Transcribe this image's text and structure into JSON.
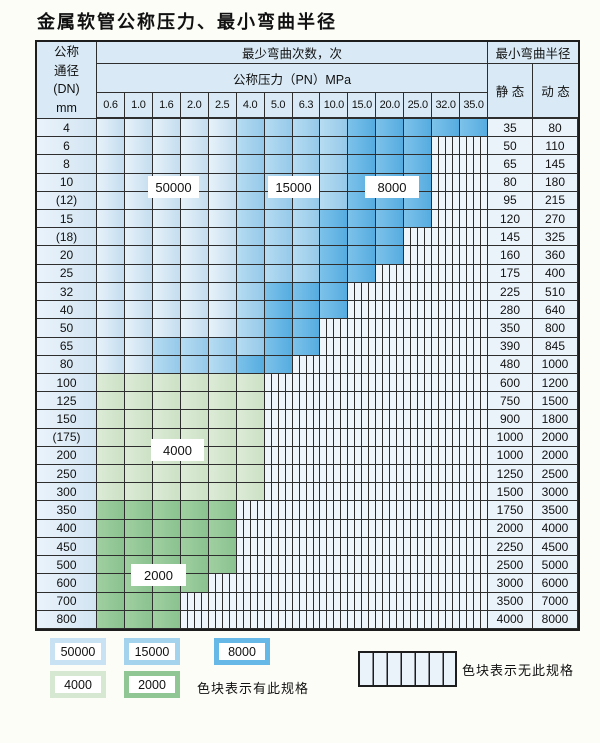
{
  "page": {
    "title": "金属软管公称压力、最小弯曲半径"
  },
  "table": {
    "header": {
      "dn_lines": [
        "公称",
        "通径",
        "(DN)",
        "mm"
      ],
      "bend_cycles": "最少弯曲次数，次",
      "pressure": "公称压力（PN）MPa",
      "radius": "最小弯曲半径",
      "static": "静 态",
      "dynamic": "动 态",
      "pressures": [
        "0.6",
        "1.0",
        "1.6",
        "2.0",
        "2.5",
        "4.0",
        "5.0",
        "6.3",
        "10.0",
        "15.0",
        "20.0",
        "25.0",
        "32.0",
        "35.0"
      ]
    },
    "rows": [
      {
        "dn": "4",
        "static": "35",
        "dynamic": "80",
        "cells": [
          "50000",
          "50000",
          "50000",
          "50000",
          "50000",
          "15000",
          "15000",
          "15000",
          "15000",
          "8000",
          "8000",
          "8000",
          "8000",
          "8000"
        ]
      },
      {
        "dn": "6",
        "static": "50",
        "dynamic": "110",
        "cells": [
          "50000",
          "50000",
          "50000",
          "50000",
          "50000",
          "15000",
          "15000",
          "15000",
          "15000",
          "8000",
          "8000",
          "8000",
          "none",
          "none"
        ]
      },
      {
        "dn": "8",
        "static": "65",
        "dynamic": "145",
        "cells": [
          "50000",
          "50000",
          "50000",
          "50000",
          "50000",
          "15000",
          "15000",
          "15000",
          "15000",
          "8000",
          "8000",
          "8000",
          "none",
          "none"
        ]
      },
      {
        "dn": "10",
        "static": "80",
        "dynamic": "180",
        "cells": [
          "50000",
          "50000",
          "50000",
          "50000",
          "50000",
          "15000",
          "15000",
          "15000",
          "15000",
          "8000",
          "8000",
          "8000",
          "none",
          "none"
        ]
      },
      {
        "dn": "(12)",
        "static": "95",
        "dynamic": "215",
        "cells": [
          "50000",
          "50000",
          "50000",
          "50000",
          "50000",
          "15000",
          "15000",
          "15000",
          "15000",
          "8000",
          "8000",
          "8000",
          "none",
          "none"
        ]
      },
      {
        "dn": "15",
        "static": "120",
        "dynamic": "270",
        "cells": [
          "50000",
          "50000",
          "50000",
          "50000",
          "50000",
          "15000",
          "15000",
          "15000",
          "8000",
          "8000",
          "8000",
          "8000",
          "none",
          "none"
        ]
      },
      {
        "dn": "(18)",
        "static": "145",
        "dynamic": "325",
        "cells": [
          "50000",
          "50000",
          "50000",
          "50000",
          "50000",
          "15000",
          "15000",
          "15000",
          "8000",
          "8000",
          "8000",
          "none",
          "none",
          "none"
        ]
      },
      {
        "dn": "20",
        "static": "160",
        "dynamic": "360",
        "cells": [
          "50000",
          "50000",
          "50000",
          "50000",
          "50000",
          "15000",
          "15000",
          "15000",
          "8000",
          "8000",
          "8000",
          "none",
          "none",
          "none"
        ]
      },
      {
        "dn": "25",
        "static": "175",
        "dynamic": "400",
        "cells": [
          "50000",
          "50000",
          "50000",
          "50000",
          "50000",
          "15000",
          "15000",
          "15000",
          "8000",
          "8000",
          "none",
          "none",
          "none",
          "none"
        ]
      },
      {
        "dn": "32",
        "static": "225",
        "dynamic": "510",
        "cells": [
          "50000",
          "50000",
          "50000",
          "50000",
          "50000",
          "15000",
          "8000",
          "8000",
          "8000",
          "none",
          "none",
          "none",
          "none",
          "none"
        ]
      },
      {
        "dn": "40",
        "static": "280",
        "dynamic": "640",
        "cells": [
          "50000",
          "50000",
          "50000",
          "50000",
          "50000",
          "15000",
          "8000",
          "8000",
          "8000",
          "none",
          "none",
          "none",
          "none",
          "none"
        ]
      },
      {
        "dn": "50",
        "static": "350",
        "dynamic": "800",
        "cells": [
          "50000",
          "50000",
          "50000",
          "50000",
          "50000",
          "15000",
          "8000",
          "8000",
          "none",
          "none",
          "none",
          "none",
          "none",
          "none"
        ]
      },
      {
        "dn": "65",
        "static": "390",
        "dynamic": "845",
        "cells": [
          "50000",
          "50000",
          "15000",
          "15000",
          "15000",
          "15000",
          "8000",
          "8000",
          "none",
          "none",
          "none",
          "none",
          "none",
          "none"
        ]
      },
      {
        "dn": "80",
        "static": "480",
        "dynamic": "1000",
        "cells": [
          "50000",
          "50000",
          "15000",
          "15000",
          "15000",
          "8000",
          "8000",
          "none",
          "none",
          "none",
          "none",
          "none",
          "none",
          "none"
        ]
      },
      {
        "dn": "100",
        "static": "600",
        "dynamic": "1200",
        "cells": [
          "4000",
          "4000",
          "4000",
          "4000",
          "4000",
          "4000",
          "none",
          "none",
          "none",
          "none",
          "none",
          "none",
          "none",
          "none"
        ]
      },
      {
        "dn": "125",
        "static": "750",
        "dynamic": "1500",
        "cells": [
          "4000",
          "4000",
          "4000",
          "4000",
          "4000",
          "4000",
          "none",
          "none",
          "none",
          "none",
          "none",
          "none",
          "none",
          "none"
        ]
      },
      {
        "dn": "150",
        "static": "900",
        "dynamic": "1800",
        "cells": [
          "4000",
          "4000",
          "4000",
          "4000",
          "4000",
          "4000",
          "none",
          "none",
          "none",
          "none",
          "none",
          "none",
          "none",
          "none"
        ]
      },
      {
        "dn": "(175)",
        "static": "1000",
        "dynamic": "2000",
        "cells": [
          "4000",
          "4000",
          "4000",
          "4000",
          "4000",
          "4000",
          "none",
          "none",
          "none",
          "none",
          "none",
          "none",
          "none",
          "none"
        ]
      },
      {
        "dn": "200",
        "static": "1000",
        "dynamic": "2000",
        "cells": [
          "4000",
          "4000",
          "4000",
          "4000",
          "4000",
          "4000",
          "none",
          "none",
          "none",
          "none",
          "none",
          "none",
          "none",
          "none"
        ]
      },
      {
        "dn": "250",
        "static": "1250",
        "dynamic": "2500",
        "cells": [
          "4000",
          "4000",
          "4000",
          "4000",
          "4000",
          "4000",
          "none",
          "none",
          "none",
          "none",
          "none",
          "none",
          "none",
          "none"
        ]
      },
      {
        "dn": "300",
        "static": "1500",
        "dynamic": "3000",
        "cells": [
          "4000",
          "4000",
          "4000",
          "4000",
          "4000",
          "4000",
          "none",
          "none",
          "none",
          "none",
          "none",
          "none",
          "none",
          "none"
        ]
      },
      {
        "dn": "350",
        "static": "1750",
        "dynamic": "3500",
        "cells": [
          "2000",
          "2000",
          "2000",
          "2000",
          "2000",
          "none",
          "none",
          "none",
          "none",
          "none",
          "none",
          "none",
          "none",
          "none"
        ]
      },
      {
        "dn": "400",
        "static": "2000",
        "dynamic": "4000",
        "cells": [
          "2000",
          "2000",
          "2000",
          "2000",
          "2000",
          "none",
          "none",
          "none",
          "none",
          "none",
          "none",
          "none",
          "none",
          "none"
        ]
      },
      {
        "dn": "450",
        "static": "2250",
        "dynamic": "4500",
        "cells": [
          "2000",
          "2000",
          "2000",
          "2000",
          "2000",
          "none",
          "none",
          "none",
          "none",
          "none",
          "none",
          "none",
          "none",
          "none"
        ]
      },
      {
        "dn": "500",
        "static": "2500",
        "dynamic": "5000",
        "cells": [
          "2000",
          "2000",
          "2000",
          "2000",
          "2000",
          "none",
          "none",
          "none",
          "none",
          "none",
          "none",
          "none",
          "none",
          "none"
        ]
      },
      {
        "dn": "600",
        "static": "3000",
        "dynamic": "6000",
        "cells": [
          "2000",
          "2000",
          "2000",
          "2000",
          "none",
          "none",
          "none",
          "none",
          "none",
          "none",
          "none",
          "none",
          "none",
          "none"
        ]
      },
      {
        "dn": "700",
        "static": "3500",
        "dynamic": "7000",
        "cells": [
          "2000",
          "2000",
          "2000",
          "none",
          "none",
          "none",
          "none",
          "none",
          "none",
          "none",
          "none",
          "none",
          "none",
          "none"
        ]
      },
      {
        "dn": "800",
        "static": "4000",
        "dynamic": "8000",
        "cells": [
          "2000",
          "2000",
          "2000",
          "none",
          "none",
          "none",
          "none",
          "none",
          "none",
          "none",
          "none",
          "none",
          "none",
          "none"
        ]
      }
    ]
  },
  "overlays": {
    "l50000": "50000",
    "l15000": "15000",
    "l8000": "8000",
    "l4000": "4000",
    "l2000": "2000"
  },
  "legend": {
    "labels": [
      "50000",
      "15000",
      "8000",
      "4000",
      "2000"
    ],
    "present_note": "色块表示有此规格",
    "absent_note": "色块表示无此规格"
  },
  "colors": {
    "cycles_50000": "#cfe4f3",
    "cycles_15000": "#a2d1ec",
    "cycles_8000": "#5fb2e3",
    "cycles_4000": "#d5e7d0",
    "cycles_2000": "#95c998",
    "no_spec_hatch_bg": "#eef5fb",
    "grid_line": "#2e2e2e",
    "header_bg": "#d9eaf6"
  }
}
